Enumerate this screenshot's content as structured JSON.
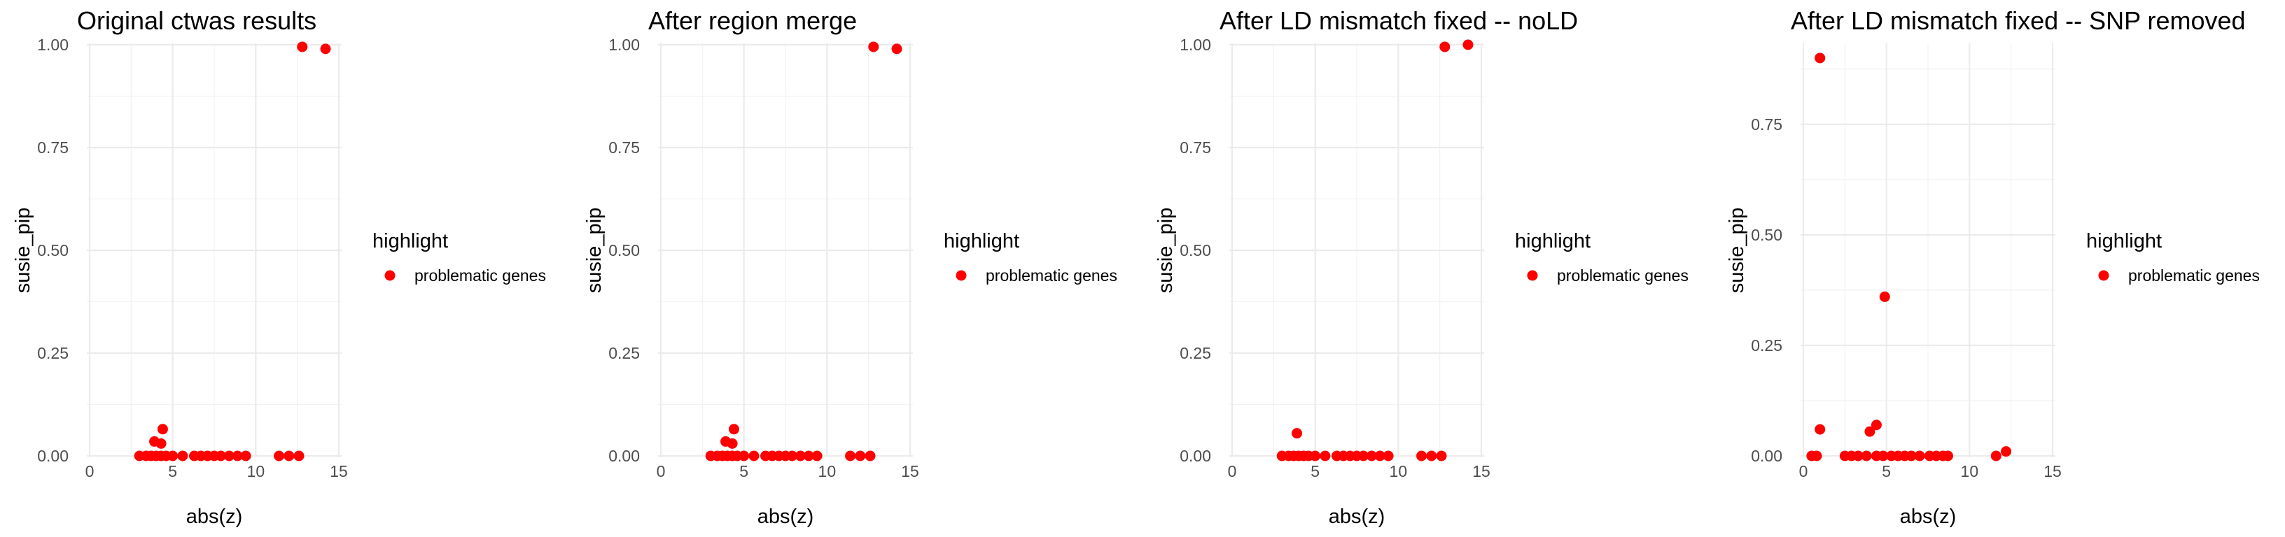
{
  "chart_data": [
    {
      "type": "scatter",
      "title": "Original ctwas results",
      "xlabel": "abs(z)",
      "ylabel": "susie_pip",
      "xlim": [
        0,
        15
      ],
      "ylim": [
        0,
        1
      ],
      "x_ticks": [
        "0",
        "5",
        "10",
        "15"
      ],
      "y_ticks": [
        "0.00",
        "0.25",
        "0.50",
        "0.75",
        "1.00"
      ],
      "legend": {
        "title": "highlight",
        "entries": [
          "problematic genes"
        ],
        "color": "#ff0000",
        "position": "right"
      },
      "points": [
        {
          "x": 12.8,
          "y": 0.995
        },
        {
          "x": 14.2,
          "y": 0.99
        },
        {
          "x": 3.0,
          "y": 0.0
        },
        {
          "x": 3.4,
          "y": 0.0
        },
        {
          "x": 3.7,
          "y": 0.0
        },
        {
          "x": 4.0,
          "y": 0.0
        },
        {
          "x": 4.3,
          "y": 0.0
        },
        {
          "x": 4.6,
          "y": 0.0
        },
        {
          "x": 5.0,
          "y": 0.0
        },
        {
          "x": 5.6,
          "y": 0.0
        },
        {
          "x": 6.3,
          "y": 0.0
        },
        {
          "x": 6.7,
          "y": 0.0
        },
        {
          "x": 7.1,
          "y": 0.0
        },
        {
          "x": 7.5,
          "y": 0.0
        },
        {
          "x": 7.9,
          "y": 0.0
        },
        {
          "x": 8.4,
          "y": 0.0
        },
        {
          "x": 8.9,
          "y": 0.0
        },
        {
          "x": 9.4,
          "y": 0.0
        },
        {
          "x": 11.4,
          "y": 0.0
        },
        {
          "x": 12.0,
          "y": 0.0
        },
        {
          "x": 12.6,
          "y": 0.0
        },
        {
          "x": 3.9,
          "y": 0.035
        },
        {
          "x": 4.3,
          "y": 0.03
        },
        {
          "x": 4.4,
          "y": 0.065
        }
      ]
    },
    {
      "type": "scatter",
      "title": "After region merge",
      "xlabel": "abs(z)",
      "ylabel": "susie_pip",
      "xlim": [
        0,
        15
      ],
      "ylim": [
        0,
        1
      ],
      "x_ticks": [
        "0",
        "5",
        "10",
        "15"
      ],
      "y_ticks": [
        "0.00",
        "0.25",
        "0.50",
        "0.75",
        "1.00"
      ],
      "legend": {
        "title": "highlight",
        "entries": [
          "problematic genes"
        ],
        "color": "#ff0000",
        "position": "right"
      },
      "points": [
        {
          "x": 12.8,
          "y": 0.995
        },
        {
          "x": 14.2,
          "y": 0.99
        },
        {
          "x": 3.0,
          "y": 0.0
        },
        {
          "x": 3.4,
          "y": 0.0
        },
        {
          "x": 3.7,
          "y": 0.0
        },
        {
          "x": 4.0,
          "y": 0.0
        },
        {
          "x": 4.3,
          "y": 0.0
        },
        {
          "x": 4.6,
          "y": 0.0
        },
        {
          "x": 5.0,
          "y": 0.0
        },
        {
          "x": 5.6,
          "y": 0.0
        },
        {
          "x": 6.3,
          "y": 0.0
        },
        {
          "x": 6.7,
          "y": 0.0
        },
        {
          "x": 7.1,
          "y": 0.0
        },
        {
          "x": 7.5,
          "y": 0.0
        },
        {
          "x": 7.9,
          "y": 0.0
        },
        {
          "x": 8.4,
          "y": 0.0
        },
        {
          "x": 8.9,
          "y": 0.0
        },
        {
          "x": 9.4,
          "y": 0.0
        },
        {
          "x": 11.4,
          "y": 0.0
        },
        {
          "x": 12.0,
          "y": 0.0
        },
        {
          "x": 12.6,
          "y": 0.0
        },
        {
          "x": 3.9,
          "y": 0.035
        },
        {
          "x": 4.3,
          "y": 0.03
        },
        {
          "x": 4.4,
          "y": 0.065
        }
      ]
    },
    {
      "type": "scatter",
      "title": "After LD mismatch fixed -- noLD",
      "xlabel": "abs(z)",
      "ylabel": "susie_pip",
      "xlim": [
        0,
        15
      ],
      "ylim": [
        0,
        1
      ],
      "x_ticks": [
        "0",
        "5",
        "10",
        "15"
      ],
      "y_ticks": [
        "0.00",
        "0.25",
        "0.50",
        "0.75",
        "1.00"
      ],
      "legend": {
        "title": "highlight",
        "entries": [
          "problematic genes"
        ],
        "color": "#ff0000",
        "position": "right"
      },
      "points": [
        {
          "x": 12.8,
          "y": 0.995
        },
        {
          "x": 14.2,
          "y": 1.0
        },
        {
          "x": 3.0,
          "y": 0.0
        },
        {
          "x": 3.4,
          "y": 0.0
        },
        {
          "x": 3.7,
          "y": 0.0
        },
        {
          "x": 4.0,
          "y": 0.0
        },
        {
          "x": 4.3,
          "y": 0.0
        },
        {
          "x": 4.6,
          "y": 0.0
        },
        {
          "x": 5.0,
          "y": 0.0
        },
        {
          "x": 5.6,
          "y": 0.0
        },
        {
          "x": 6.3,
          "y": 0.0
        },
        {
          "x": 6.7,
          "y": 0.0
        },
        {
          "x": 7.1,
          "y": 0.0
        },
        {
          "x": 7.5,
          "y": 0.0
        },
        {
          "x": 7.9,
          "y": 0.0
        },
        {
          "x": 8.4,
          "y": 0.0
        },
        {
          "x": 8.9,
          "y": 0.0
        },
        {
          "x": 9.4,
          "y": 0.0
        },
        {
          "x": 11.4,
          "y": 0.0
        },
        {
          "x": 12.0,
          "y": 0.0
        },
        {
          "x": 12.6,
          "y": 0.0
        },
        {
          "x": 3.9,
          "y": 0.055
        }
      ]
    },
    {
      "type": "scatter",
      "title": "After LD mismatch fixed -- SNP removed",
      "xlabel": "abs(z)",
      "ylabel": "susie_pip",
      "xlim": [
        0,
        15
      ],
      "ylim": [
        0,
        0.93
      ],
      "x_ticks": [
        "0",
        "5",
        "10",
        "15"
      ],
      "y_ticks": [
        "0.00",
        "0.25",
        "0.50",
        "0.75"
      ],
      "legend": {
        "title": "highlight",
        "entries": [
          "problematic genes"
        ],
        "color": "#ff0000",
        "position": "right"
      },
      "points": [
        {
          "x": 1.0,
          "y": 0.9
        },
        {
          "x": 4.9,
          "y": 0.36
        },
        {
          "x": 1.0,
          "y": 0.06
        },
        {
          "x": 4.0,
          "y": 0.055
        },
        {
          "x": 4.4,
          "y": 0.07
        },
        {
          "x": 12.2,
          "y": 0.01
        },
        {
          "x": 0.5,
          "y": 0.0
        },
        {
          "x": 0.8,
          "y": 0.0
        },
        {
          "x": 2.5,
          "y": 0.0
        },
        {
          "x": 2.9,
          "y": 0.0
        },
        {
          "x": 3.3,
          "y": 0.0
        },
        {
          "x": 3.8,
          "y": 0.0
        },
        {
          "x": 4.4,
          "y": 0.0
        },
        {
          "x": 4.8,
          "y": 0.0
        },
        {
          "x": 5.3,
          "y": 0.0
        },
        {
          "x": 5.7,
          "y": 0.0
        },
        {
          "x": 6.1,
          "y": 0.0
        },
        {
          "x": 6.5,
          "y": 0.0
        },
        {
          "x": 7.0,
          "y": 0.0
        },
        {
          "x": 7.6,
          "y": 0.0
        },
        {
          "x": 8.0,
          "y": 0.0
        },
        {
          "x": 8.4,
          "y": 0.0
        },
        {
          "x": 8.7,
          "y": 0.0
        },
        {
          "x": 11.6,
          "y": 0.0
        }
      ]
    }
  ]
}
